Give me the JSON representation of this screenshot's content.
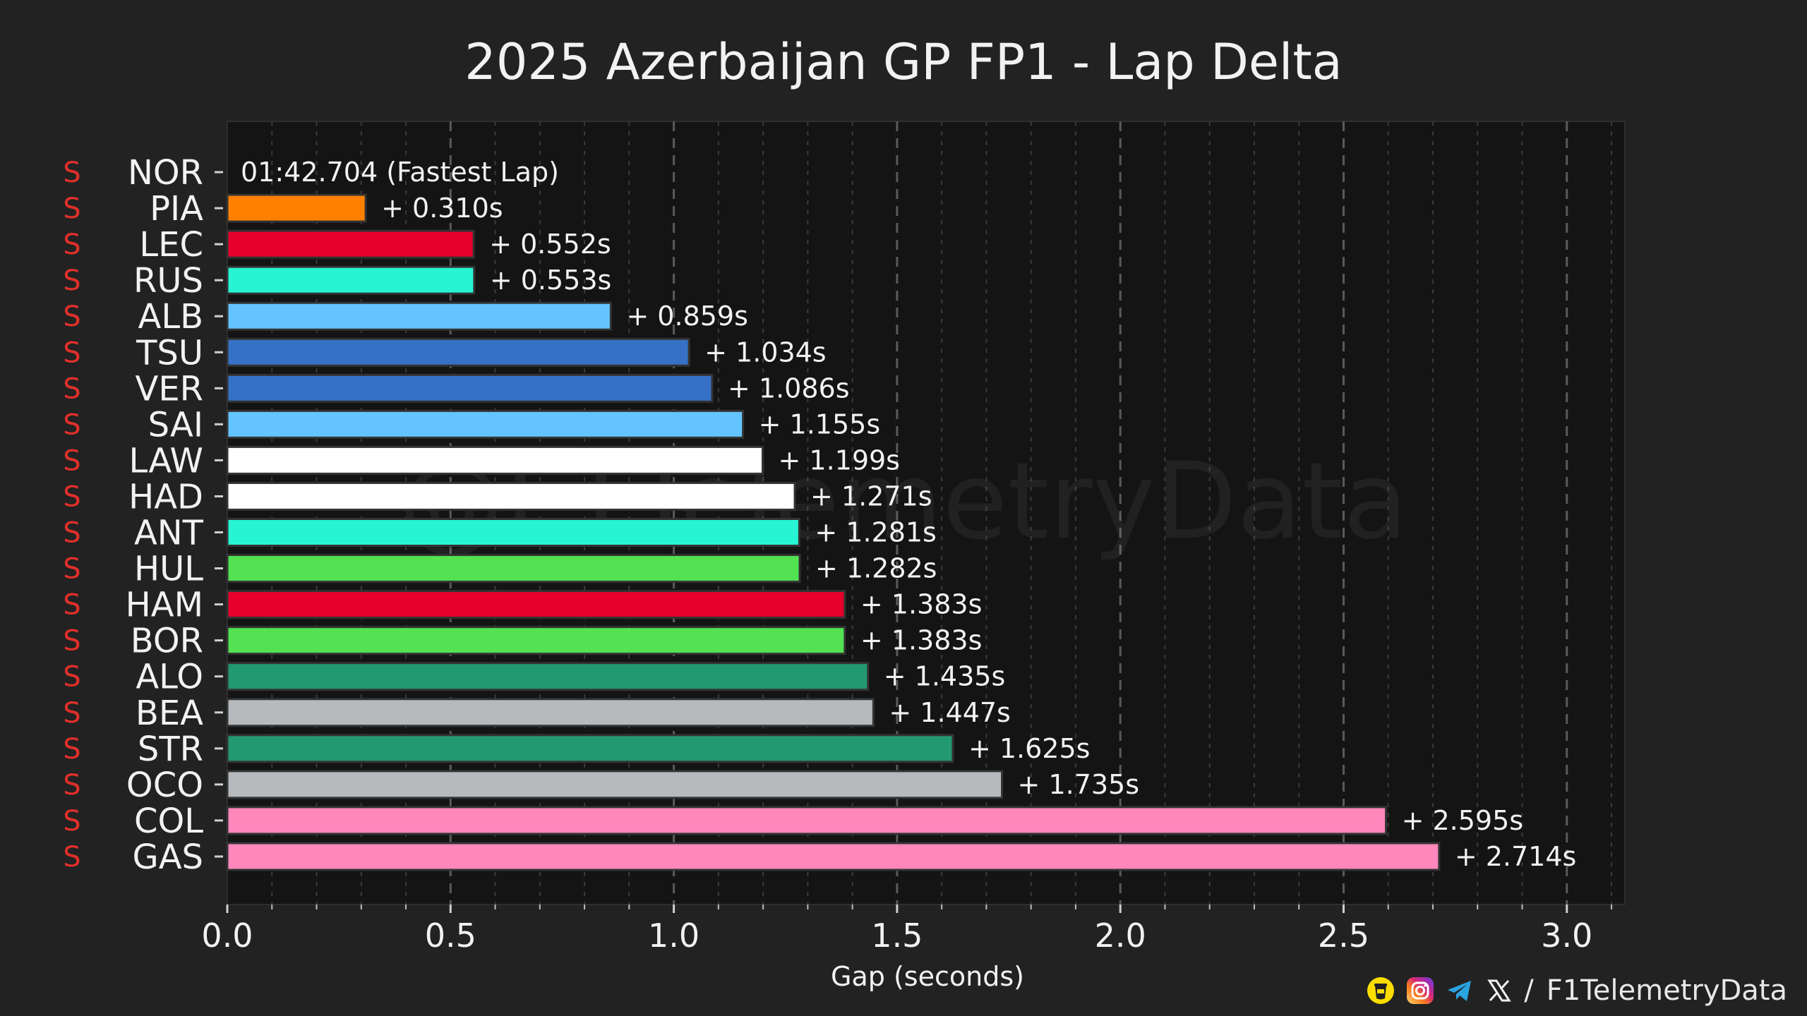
{
  "chart_data": {
    "type": "bar",
    "orientation": "horizontal",
    "title": "2025 Azerbaijan GP FP1 - Lap Delta",
    "xlabel": "Gap (seconds)",
    "ylabel": "",
    "xlim": [
      0.0,
      3.13
    ],
    "xticks": [
      0.0,
      0.5,
      1.0,
      1.5,
      2.0,
      2.5,
      3.0
    ],
    "xtick_labels": [
      "0.0",
      "0.5",
      "1.0",
      "1.5",
      "2.0",
      "2.5",
      "3.0"
    ],
    "fastest_label": "01:42.704 (Fastest Lap)",
    "watermark": "@F1TelemetryData",
    "colors": {
      "background": "#222222",
      "plot_background": "#141414",
      "compound": "#e0302a",
      "text": "#f2f2f2",
      "grid_major": "#5a5a5a",
      "grid_minor": "#3a3a3a"
    },
    "drivers": [
      {
        "driver": "NOR",
        "compound": "S",
        "gap": 0.0,
        "label": "",
        "color": "#ff8000"
      },
      {
        "driver": "PIA",
        "compound": "S",
        "gap": 0.31,
        "label": "+ 0.310s",
        "color": "#ff8000"
      },
      {
        "driver": "LEC",
        "compound": "S",
        "gap": 0.552,
        "label": "+ 0.552s",
        "color": "#e8002d"
      },
      {
        "driver": "RUS",
        "compound": "S",
        "gap": 0.553,
        "label": "+ 0.553s",
        "color": "#27f4d2"
      },
      {
        "driver": "ALB",
        "compound": "S",
        "gap": 0.859,
        "label": "+ 0.859s",
        "color": "#64c4ff"
      },
      {
        "driver": "TSU",
        "compound": "S",
        "gap": 1.034,
        "label": "+ 1.034s",
        "color": "#3671c6"
      },
      {
        "driver": "VER",
        "compound": "S",
        "gap": 1.086,
        "label": "+ 1.086s",
        "color": "#3671c6"
      },
      {
        "driver": "SAI",
        "compound": "S",
        "gap": 1.155,
        "label": "+ 1.155s",
        "color": "#64c4ff"
      },
      {
        "driver": "LAW",
        "compound": "S",
        "gap": 1.199,
        "label": "+ 1.199s",
        "color": "#ffffff"
      },
      {
        "driver": "HAD",
        "compound": "S",
        "gap": 1.271,
        "label": "+ 1.271s",
        "color": "#ffffff"
      },
      {
        "driver": "ANT",
        "compound": "S",
        "gap": 1.281,
        "label": "+ 1.281s",
        "color": "#27f4d2"
      },
      {
        "driver": "HUL",
        "compound": "S",
        "gap": 1.282,
        "label": "+ 1.282s",
        "color": "#52e252"
      },
      {
        "driver": "HAM",
        "compound": "S",
        "gap": 1.383,
        "label": "+ 1.383s",
        "color": "#e8002d"
      },
      {
        "driver": "BOR",
        "compound": "S",
        "gap": 1.383,
        "label": "+ 1.383s",
        "color": "#52e252"
      },
      {
        "driver": "ALO",
        "compound": "S",
        "gap": 1.435,
        "label": "+ 1.435s",
        "color": "#229971"
      },
      {
        "driver": "BEA",
        "compound": "S",
        "gap": 1.447,
        "label": "+ 1.447s",
        "color": "#b6babd"
      },
      {
        "driver": "STR",
        "compound": "S",
        "gap": 1.625,
        "label": "+ 1.625s",
        "color": "#229971"
      },
      {
        "driver": "OCO",
        "compound": "S",
        "gap": 1.735,
        "label": "+ 1.735s",
        "color": "#b6babd"
      },
      {
        "driver": "COL",
        "compound": "S",
        "gap": 2.595,
        "label": "+ 2.595s",
        "color": "#ff87bc"
      },
      {
        "driver": "GAS",
        "compound": "S",
        "gap": 2.714,
        "label": "+ 2.714s",
        "color": "#ff87bc"
      }
    ]
  },
  "footer": {
    "separator": "/",
    "handle": "F1TelemetryData",
    "icons": [
      "buymeacoffee-icon",
      "instagram-icon",
      "telegram-icon",
      "x-icon"
    ]
  }
}
